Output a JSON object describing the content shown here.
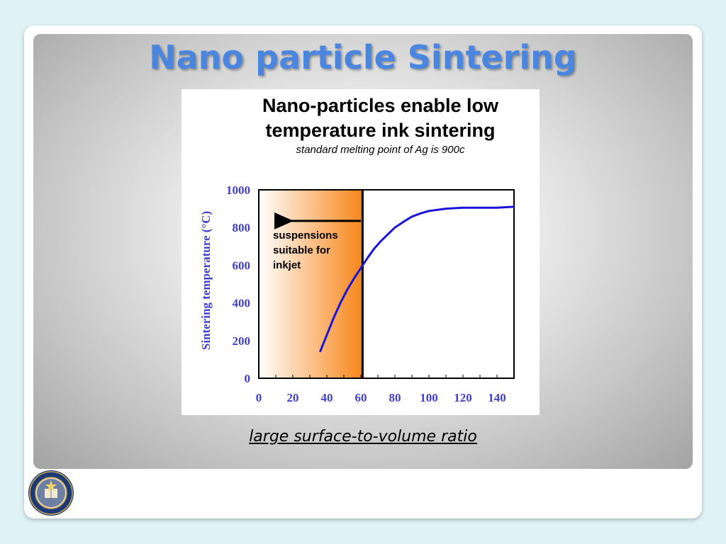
{
  "slide": {
    "title": "Nano particle Sintering",
    "caption": "large surface-to-volume ratio"
  },
  "colors": {
    "title": "#4a86e0",
    "series": "#1a14d6",
    "axis_text": "#3f3fc8",
    "highlight_start": "#ffffff",
    "highlight_end": "#f7861a"
  },
  "icons": {
    "seal": "university-seal-icon"
  },
  "chart_data": {
    "type": "line",
    "title": "Nano-particles enable low temperature ink sintering",
    "subtitle": "standard melting point of Ag is 900c",
    "xlabel": "",
    "ylabel": "Sintering temperature (°C)",
    "xlim": [
      0,
      150
    ],
    "ylim": [
      0,
      1000
    ],
    "x_ticks": [
      0,
      20,
      40,
      60,
      80,
      100,
      120,
      140
    ],
    "y_ticks": [
      0,
      200,
      400,
      600,
      800,
      1000
    ],
    "grid": false,
    "series": [
      {
        "x": [
          36,
          40,
          44,
          48,
          52,
          56,
          60,
          64,
          68,
          72,
          76,
          80,
          85,
          90,
          95,
          100,
          110,
          120,
          130,
          140,
          150
        ],
        "y": [
          140,
          230,
          320,
          400,
          470,
          530,
          585,
          640,
          690,
          730,
          765,
          800,
          830,
          858,
          875,
          888,
          900,
          905,
          905,
          905,
          910
        ]
      }
    ],
    "highlight_region": {
      "x_from": 0,
      "x_to": 61
    },
    "annotation": {
      "text": "suspensions suitable for inkjet",
      "lines": [
        "suspensions",
        "suitable for",
        "inkjet"
      ],
      "arrow_from_x": 60,
      "arrow_to_x": 15,
      "arrow_y": 835
    }
  }
}
